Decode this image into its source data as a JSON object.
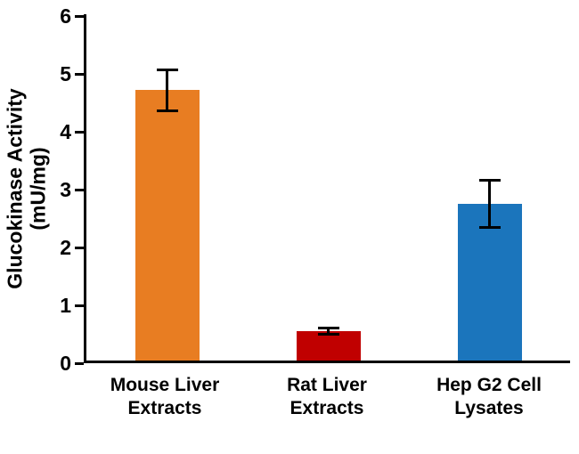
{
  "chart_data": {
    "type": "bar",
    "title": "",
    "xlabel": "",
    "ylabel": "Glucokinase Activity (mU/mg)",
    "ylabel_lines": [
      "Glucokinase Activity",
      "(mU/mg)"
    ],
    "ylim": [
      0,
      6
    ],
    "yticks": [
      0,
      1,
      2,
      3,
      4,
      5,
      6
    ],
    "grid": false,
    "legend": false,
    "categories": [
      "Mouse Liver Extracts",
      "Rat Liver Extracts",
      "Hep G2 Cell Lysates"
    ],
    "category_label_lines": [
      [
        "Mouse Liver",
        "Extracts"
      ],
      [
        "Rat Liver",
        "Extracts"
      ],
      [
        "Hep G2 Cell",
        "Lysates"
      ]
    ],
    "values": [
      4.72,
      0.55,
      2.75
    ],
    "error_bars": [
      0.38,
      0.08,
      0.43
    ],
    "bar_colors": [
      "#E87D22",
      "#C00000",
      "#1B75BC"
    ],
    "axis_color": "#000000",
    "text_color": "#000000"
  }
}
